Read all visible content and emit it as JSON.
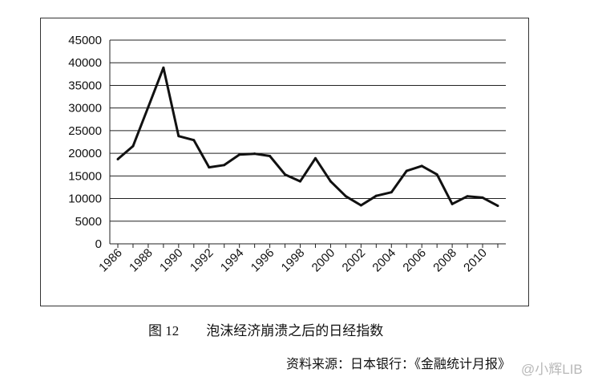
{
  "chart_data": {
    "type": "line",
    "x": [
      1986,
      1987,
      1988,
      1989,
      1990,
      1991,
      1992,
      1993,
      1994,
      1995,
      1996,
      1997,
      1998,
      1999,
      2000,
      2001,
      2002,
      2003,
      2004,
      2005,
      2006,
      2007,
      2008,
      2009,
      2010,
      2011
    ],
    "series": [
      {
        "values": [
          18700,
          21600,
          30200,
          38900,
          23800,
          22900,
          16900,
          17400,
          19700,
          19900,
          19400,
          15300,
          13800,
          18900,
          13800,
          10500,
          8500,
          10600,
          11400,
          16100,
          17200,
          15300,
          8800,
          10500,
          10200,
          8400
        ]
      }
    ],
    "x_tick_labels": [
      "1986",
      "1988",
      "1990",
      "1992",
      "1994",
      "1996",
      "1998",
      "2000",
      "2002",
      "2004",
      "2006",
      "2008",
      "2010"
    ],
    "y_tick_labels": [
      "0",
      "5000",
      "10000",
      "15000",
      "20000",
      "25000",
      "30000",
      "35000",
      "40000",
      "45000"
    ],
    "ylim": [
      0,
      45000
    ],
    "y_ticks": [
      0,
      5000,
      10000,
      15000,
      20000,
      25000,
      30000,
      35000,
      40000,
      45000
    ],
    "grid": true,
    "line_color": "#111111"
  },
  "caption": {
    "figure_number": "图 12",
    "text": "泡沫经济崩溃之后的日经指数"
  },
  "source": "资料来源：日本银行：《金融统计月报》",
  "watermark": "@小辉LIB"
}
